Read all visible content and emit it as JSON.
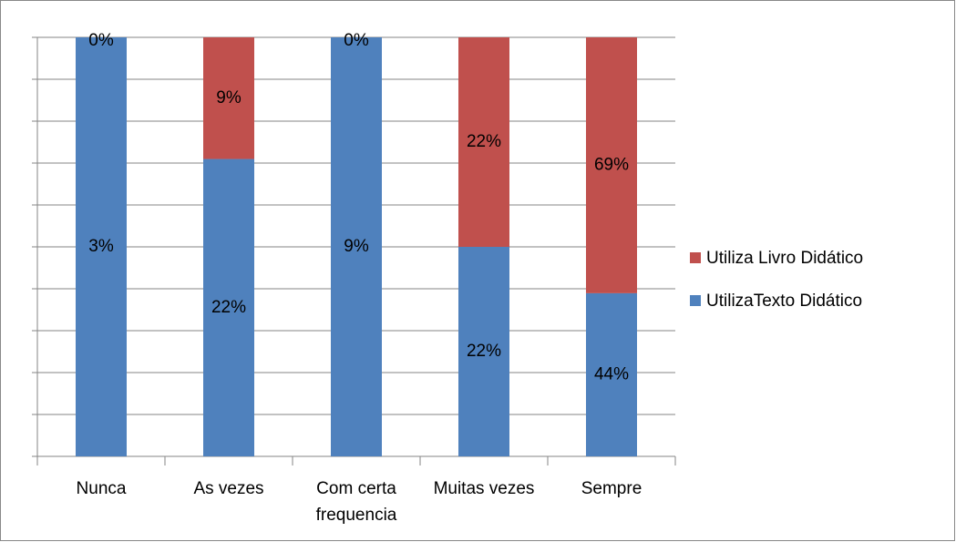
{
  "chart_data": {
    "type": "bar",
    "stacking": "percent",
    "categories": [
      "Nunca",
      "As vezes",
      "Com certa frequencia",
      "Muitas vezes",
      "Sempre"
    ],
    "series": [
      {
        "name": "UtilizaTexto Didático",
        "color": "#4f81bd",
        "values": [
          3,
          22,
          9,
          22,
          44
        ],
        "value_labels": [
          "3%",
          "22%",
          "9%",
          "22%",
          "44%"
        ]
      },
      {
        "name": "Utiliza Livro Didático",
        "color": "#c0504d",
        "values": [
          0,
          9,
          0,
          22,
          69
        ],
        "value_labels": [
          "0%",
          "9%",
          "0%",
          "22%",
          "69%"
        ]
      }
    ],
    "ylim": [
      0,
      100
    ],
    "yticks": [
      0,
      10,
      20,
      30,
      40,
      50,
      60,
      70,
      80,
      90,
      100
    ],
    "show_tick_labels": false,
    "grid": true,
    "legend": "right"
  }
}
